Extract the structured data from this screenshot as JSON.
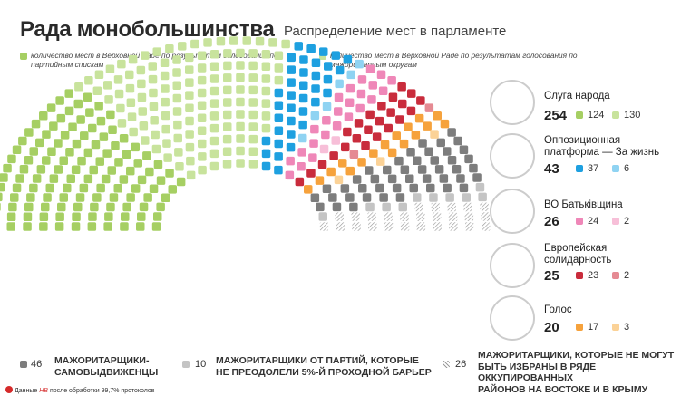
{
  "header": {
    "title": "Рада монобольшинства",
    "subtitle": "Распределение мест в парламенте"
  },
  "legend": {
    "list_label": "количество мест в Верховной Раде по результатам голосования по партийным спискам",
    "district_label": "количество мест в Верховной Раде по результатам голосования по мажоритарным округам"
  },
  "parties": [
    {
      "name_line1": "Слуга народа",
      "name_line2": "",
      "total": "254",
      "list": "124",
      "district": "130",
      "list_color": "#a6cf63",
      "district_color": "#c8e39c",
      "avatar_icon": "person-portrait-icon"
    },
    {
      "name_line1": "Оппозиционная",
      "name_line2": "платформа — За жизнь",
      "total": "43",
      "list": "37",
      "district": "6",
      "list_color": "#1ea0e0",
      "district_color": "#8fd3f2",
      "avatar_icon": "person-portrait-icon"
    },
    {
      "name_line1": "ВО Батьківщина",
      "name_line2": "",
      "total": "26",
      "list": "24",
      "district": "2",
      "list_color": "#ef87b8",
      "district_color": "#f7bfd8",
      "avatar_icon": "person-portrait-icon"
    },
    {
      "name_line1": "Европейская",
      "name_line2": "солидарность",
      "total": "25",
      "list": "23",
      "district": "2",
      "list_color": "#c92c3c",
      "district_color": "#e58a93",
      "avatar_icon": "person-portrait-icon"
    },
    {
      "name_line1": "Голос",
      "name_line2": "",
      "total": "20",
      "list": "17",
      "district": "3",
      "list_color": "#f6a23c",
      "district_color": "#fbd297",
      "avatar_icon": "person-portrait-icon"
    }
  ],
  "bottom_legend": [
    {
      "count": "46",
      "line1": "мажоритарщики-",
      "line2": "самовыдвиженцы",
      "color": "#7d7d7d"
    },
    {
      "count": "10",
      "line1": "мажоритарщики от партий, которые",
      "line2": "не преодолели 5%-й проходной барьер",
      "color": "#c4c4c4"
    },
    {
      "count": "26",
      "line1": "мажоритарщики, которые не могут",
      "line2": "быть избраны в ряде оккупированных",
      "line3": "районов на востоке и в Крыму",
      "color": "hatched"
    }
  ],
  "footer": {
    "prefix": "Данные",
    "brand": "НВ",
    "suffix": "после обработки 99,7% протоколов"
  },
  "chart_data": {
    "type": "parliament-hemicycle",
    "total_seats": 450,
    "segments": [
      {
        "name": "Слуга народа (списки)",
        "seats": 124,
        "color": "#a6cf63"
      },
      {
        "name": "Слуга народа (округа)",
        "seats": 130,
        "color": "#c8e39c"
      },
      {
        "name": "Оппозиционная платформа — За жизнь (списки)",
        "seats": 37,
        "color": "#1ea0e0"
      },
      {
        "name": "Оппозиционная платформа — За жизнь (округа)",
        "seats": 6,
        "color": "#8fd3f2"
      },
      {
        "name": "ВО Батьківщина (списки)",
        "seats": 24,
        "color": "#ef87b8"
      },
      {
        "name": "ВО Батьківщина (округа)",
        "seats": 2,
        "color": "#f7bfd8"
      },
      {
        "name": "Европейская солидарность (списки)",
        "seats": 23,
        "color": "#c92c3c"
      },
      {
        "name": "Европейская солидарность (округа)",
        "seats": 2,
        "color": "#e58a93"
      },
      {
        "name": "Голос (списки)",
        "seats": 17,
        "color": "#f6a23c"
      },
      {
        "name": "Голос (округа)",
        "seats": 3,
        "color": "#fbd297"
      },
      {
        "name": "мажоритарщики-самовыдвиженцы",
        "seats": 46,
        "color": "#7d7d7d"
      },
      {
        "name": "мажоритарщики от партий, которые не преодолели 5%-й проходной барьер",
        "seats": 10,
        "color": "#c4c4c4"
      },
      {
        "name": "мажоритарщики, которые не могут быть избраны",
        "seats": 26,
        "color": "hatched"
      }
    ]
  }
}
